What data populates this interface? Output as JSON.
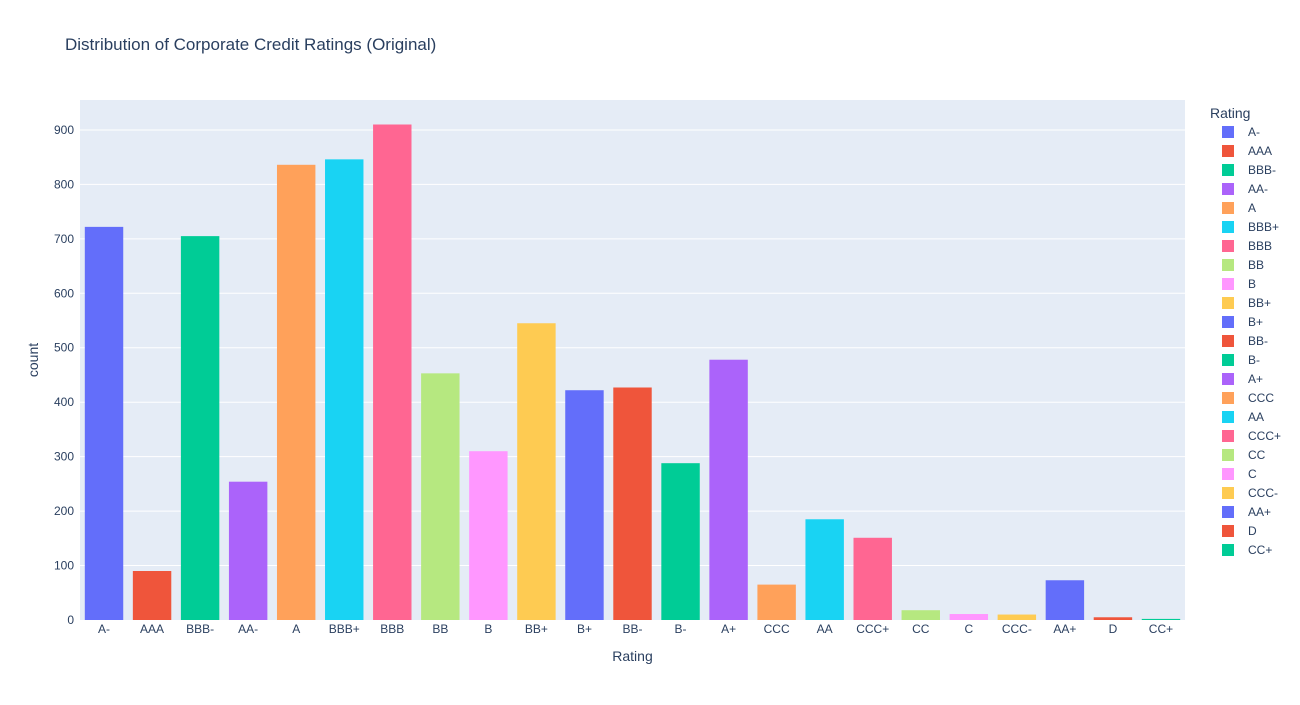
{
  "chart_data": {
    "type": "bar",
    "title": "Distribution of Corporate Credit Ratings (Original)",
    "xlabel": "Rating",
    "ylabel": "count",
    "ylim": [
      0,
      955
    ],
    "yticks": [
      0,
      100,
      200,
      300,
      400,
      500,
      600,
      700,
      800,
      900
    ],
    "grid": true,
    "legend": {
      "title": "Rating",
      "placement": "right"
    },
    "categories": [
      "A-",
      "AAA",
      "BBB-",
      "AA-",
      "A",
      "BBB+",
      "BBB",
      "BB",
      "B",
      "BB+",
      "B+",
      "BB-",
      "B-",
      "A+",
      "CCC",
      "AA",
      "CCC+",
      "CC",
      "C",
      "CCC-",
      "AA+",
      "D",
      "CC+"
    ],
    "values": [
      722,
      90,
      705,
      254,
      836,
      846,
      910,
      453,
      310,
      545,
      422,
      427,
      288,
      478,
      65,
      185,
      151,
      18,
      11,
      10,
      73,
      5,
      2
    ],
    "colors": [
      "#636efa",
      "#ef553b",
      "#00cc96",
      "#ab63fa",
      "#ffa15a",
      "#19d3f3",
      "#ff6692",
      "#b6e880",
      "#ff97ff",
      "#fecb52",
      "#636efa",
      "#ef553b",
      "#00cc96",
      "#ab63fa",
      "#ffa15a",
      "#19d3f3",
      "#ff6692",
      "#b6e880",
      "#ff97ff",
      "#fecb52",
      "#636efa",
      "#ef553b",
      "#00cc96"
    ],
    "plot_background": "#e5ecf6"
  }
}
